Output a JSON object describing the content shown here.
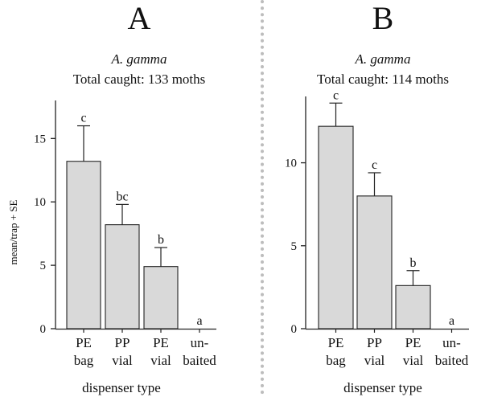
{
  "colors": {
    "bar_fill": "#d9d9d9",
    "bar_stroke": "#222222",
    "axis": "#222222",
    "divider": "#bdbdbd"
  },
  "chart_data": [
    {
      "type": "bar",
      "panel": "A",
      "species": "A. gamma",
      "total": "Total caught: 133 moths",
      "ylabel": "mean/trap + SE",
      "xlabel": "dispenser type",
      "categories": [
        [
          "PE",
          "bag"
        ],
        [
          "PP",
          "vial"
        ],
        [
          "PE",
          "vial"
        ],
        [
          "un-",
          "baited"
        ]
      ],
      "values": [
        13.2,
        8.2,
        4.9,
        0
      ],
      "se": [
        2.8,
        1.6,
        1.5,
        0
      ],
      "letters": [
        "c",
        "bc",
        "b",
        "a"
      ],
      "yticks": [
        0,
        5,
        10,
        15
      ],
      "ylim": [
        0,
        18
      ]
    },
    {
      "type": "bar",
      "panel": "B",
      "species": "A. gamma",
      "total": "Total caught: 114 moths",
      "ylabel": "",
      "xlabel": "dispenser type",
      "categories": [
        [
          "PE",
          "bag"
        ],
        [
          "PP",
          "vial"
        ],
        [
          "PE",
          "vial"
        ],
        [
          "un-",
          "baited"
        ]
      ],
      "values": [
        12.2,
        8.0,
        2.6,
        0
      ],
      "se": [
        1.4,
        1.4,
        0.9,
        0
      ],
      "letters": [
        "c",
        "c",
        "b",
        "a"
      ],
      "yticks": [
        0,
        5,
        10
      ],
      "ylim": [
        0,
        14
      ]
    }
  ]
}
